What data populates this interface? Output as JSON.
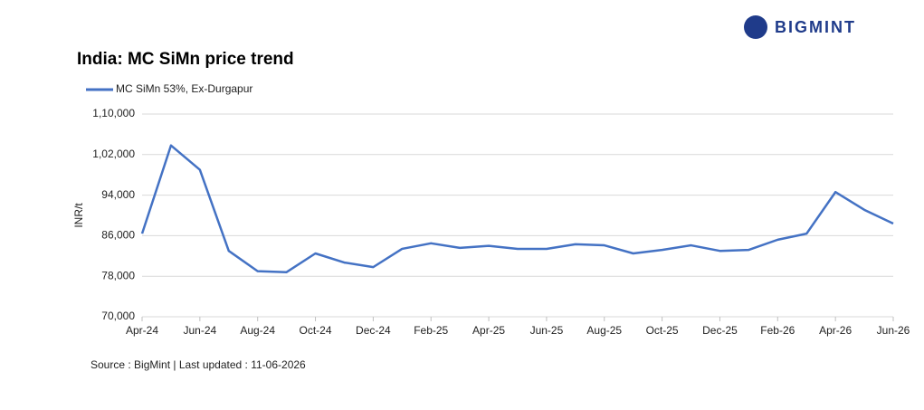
{
  "brand": "BIGMINT",
  "chart_data": {
    "type": "line",
    "title": "India: MC SiMn price trend",
    "y_label": "INR/t",
    "source": "Source : BigMint | Last updated : 11-06-2026",
    "x": [
      "Apr-24",
      "May-24",
      "Jun-24",
      "Jul-24",
      "Aug-24",
      "Sep-24",
      "Oct-24",
      "Nov-24",
      "Dec-24",
      "Jan-25",
      "Feb-25",
      "Mar-25",
      "Apr-25",
      "May-25",
      "Jun-25",
      "Jul-25",
      "Aug-25",
      "Sep-25",
      "Oct-25",
      "Nov-25",
      "Dec-25",
      "Jan-26",
      "Feb-26",
      "Mar-26",
      "Apr-26",
      "May-26",
      "Jun-26"
    ],
    "xticks": [
      "Apr-24",
      "Jun-24",
      "Aug-24",
      "Oct-24",
      "Dec-24",
      "Feb-25",
      "Apr-25",
      "Jun-25",
      "Aug-25",
      "Oct-25",
      "Dec-25",
      "Feb-26",
      "Apr-26",
      "Jun-26"
    ],
    "series": [
      {
        "name": "MC SiMn 53%, Ex-Durgapur",
        "color": "#4472c4",
        "values": [
          86400,
          103800,
          99000,
          83000,
          79000,
          78800,
          82500,
          80700,
          79800,
          83400,
          84500,
          83600,
          84000,
          83400,
          83400,
          84300,
          84100,
          82500,
          83200,
          84100,
          83000,
          83200,
          85200,
          86400,
          94600,
          91100,
          88400
        ]
      }
    ],
    "ylim": [
      70000,
      110000
    ],
    "yticks": [
      {
        "value": 70000,
        "label": "70,000"
      },
      {
        "value": 78000,
        "label": "78,000"
      },
      {
        "value": 86000,
        "label": "86,000"
      },
      {
        "value": 94000,
        "label": "94,000"
      },
      {
        "value": 102000,
        "label": "1,02,000"
      },
      {
        "value": 110000,
        "label": "1,10,000"
      }
    ],
    "grid": true,
    "legend": "top-left"
  }
}
